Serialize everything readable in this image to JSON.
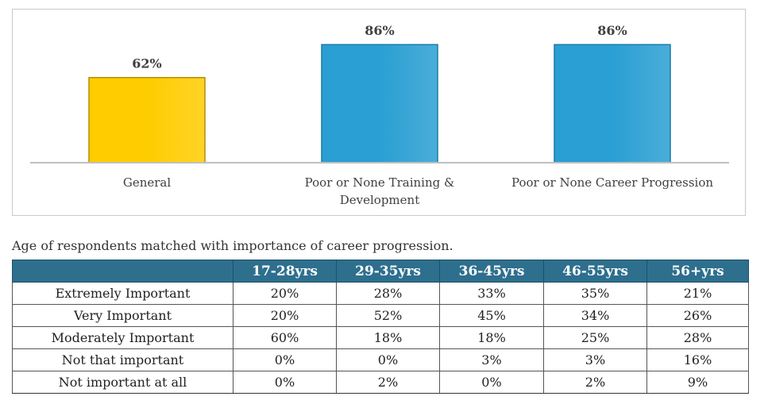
{
  "chart_data": {
    "type": "bar",
    "categories": [
      "General",
      "Poor or None Training & Development",
      "Poor or None Career Progression"
    ],
    "category_lines": [
      [
        "General"
      ],
      [
        "Poor or None Training &",
        "Development"
      ],
      [
        "Poor or None Career Progression"
      ]
    ],
    "values": [
      62,
      86,
      86
    ],
    "data_labels": [
      "62%",
      "86%",
      "86%"
    ],
    "colors": [
      "#ffcc00",
      "#2a9fd3",
      "#2a9fd3"
    ],
    "ylim": [
      0,
      100
    ],
    "title": "",
    "xlabel": "",
    "ylabel": ""
  },
  "caption": "Age of respondents matched with importance of career progression.",
  "table": {
    "headers": [
      "",
      "17-28yrs",
      "29-35yrs",
      "36-45yrs",
      "46-55yrs",
      "56+yrs"
    ],
    "rows": [
      {
        "label": "Extremely Important",
        "cells": [
          "20%",
          "28%",
          "33%",
          "35%",
          "21%"
        ]
      },
      {
        "label": "Very Important",
        "cells": [
          "20%",
          "52%",
          "45%",
          "34%",
          "26%"
        ]
      },
      {
        "label": "Moderately Important",
        "cells": [
          "60%",
          "18%",
          "18%",
          "25%",
          "28%"
        ]
      },
      {
        "label": "Not that important",
        "cells": [
          "0%",
          "0%",
          "3%",
          "3%",
          "16%"
        ]
      },
      {
        "label": "Not important at all",
        "cells": [
          "0%",
          "2%",
          "0%",
          "2%",
          "9%"
        ]
      }
    ]
  }
}
